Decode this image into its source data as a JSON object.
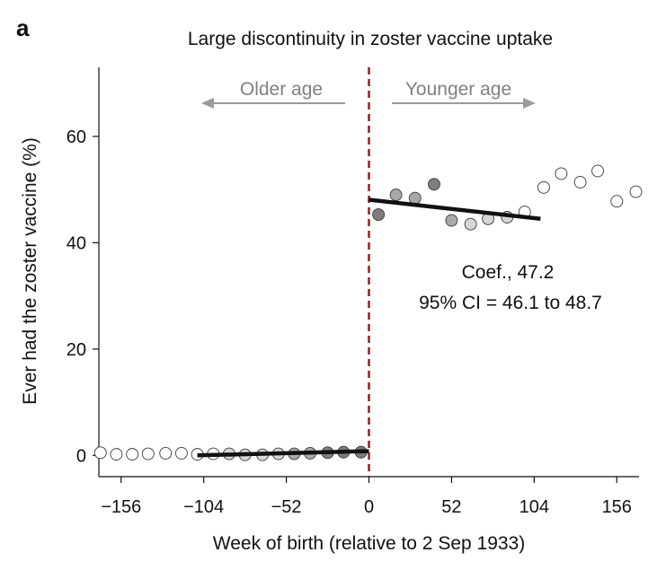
{
  "chart_data": {
    "type": "scatter",
    "panel_label": "a",
    "title": "Large discontinuity in zoster vaccine uptake",
    "xlabel": "Week of birth (relative to 2 Sep 1933)",
    "ylabel": "Ever had the zoster vaccine (%)",
    "xlim": [
      -170,
      170
    ],
    "ylim": [
      -4,
      73
    ],
    "xticks": [
      -156,
      -104,
      -52,
      0,
      52,
      104,
      156
    ],
    "xtick_labels": [
      "−156",
      "−104",
      "−52",
      "0",
      "52",
      "104",
      "156"
    ],
    "yticks": [
      0,
      20,
      40,
      60
    ],
    "ytick_labels": [
      "0",
      "20",
      "40",
      "60"
    ],
    "grid": false,
    "cutoff_x": 0,
    "arrows": {
      "left_label": "Older age",
      "right_label": "Younger age"
    },
    "annotation": {
      "line1": "Coef., 47.2",
      "line2": "95% CI = 46.1 to 48.7"
    },
    "points_older": [
      {
        "x": -169,
        "y": 0.5,
        "shade": "open"
      },
      {
        "x": -159,
        "y": 0.2,
        "shade": "open"
      },
      {
        "x": -149,
        "y": 0.2,
        "shade": "open"
      },
      {
        "x": -139,
        "y": 0.3,
        "shade": "open"
      },
      {
        "x": -128,
        "y": 0.4,
        "shade": "open"
      },
      {
        "x": -118,
        "y": 0.4,
        "shade": "open"
      },
      {
        "x": -108,
        "y": 0.2,
        "shade": "open"
      },
      {
        "x": -98,
        "y": 0.3,
        "shade": "open"
      },
      {
        "x": -88,
        "y": 0.3,
        "shade": "light"
      },
      {
        "x": -78,
        "y": 0.1,
        "shade": "light"
      },
      {
        "x": -67,
        "y": 0.1,
        "shade": "light"
      },
      {
        "x": -57,
        "y": 0.3,
        "shade": "light"
      },
      {
        "x": -47,
        "y": 0.3,
        "shade": "mid"
      },
      {
        "x": -37,
        "y": 0.4,
        "shade": "mid"
      },
      {
        "x": -26,
        "y": 0.5,
        "shade": "dark"
      },
      {
        "x": -16,
        "y": 0.6,
        "shade": "dark"
      },
      {
        "x": -5,
        "y": 0.6,
        "shade": "dark"
      }
    ],
    "points_younger": [
      {
        "x": 6,
        "y": 45.3,
        "shade": "dark"
      },
      {
        "x": 17,
        "y": 49.0,
        "shade": "mid"
      },
      {
        "x": 29,
        "y": 48.4,
        "shade": "mid"
      },
      {
        "x": 41,
        "y": 51.0,
        "shade": "dark"
      },
      {
        "x": 52,
        "y": 44.2,
        "shade": "mid"
      },
      {
        "x": 64,
        "y": 43.5,
        "shade": "light"
      },
      {
        "x": 75,
        "y": 44.5,
        "shade": "light"
      },
      {
        "x": 87,
        "y": 44.8,
        "shade": "light"
      },
      {
        "x": 98,
        "y": 45.8,
        "shade": "open"
      },
      {
        "x": 110,
        "y": 50.4,
        "shade": "open"
      },
      {
        "x": 121,
        "y": 53.0,
        "shade": "open"
      },
      {
        "x": 133,
        "y": 51.4,
        "shade": "open"
      },
      {
        "x": 144,
        "y": 53.5,
        "shade": "open"
      },
      {
        "x": 156,
        "y": 47.8,
        "shade": "open"
      },
      {
        "x": 168,
        "y": 49.6,
        "shade": "open"
      }
    ],
    "fit_older": {
      "x": [
        -108,
        0
      ],
      "y": [
        0.0,
        0.8
      ]
    },
    "fit_younger": {
      "x": [
        0,
        108
      ],
      "y": [
        48.1,
        44.5
      ]
    },
    "colors": {
      "open": "#ffffff",
      "light": "#d6d6d6",
      "mid": "#a9a9a9",
      "dark": "#7e7e7e",
      "point_edge": "#3a3a3a",
      "fit_line": "#111111",
      "cutoff_line": "#9b1b1b",
      "arrow": "#9a9a9a",
      "axis": "#111111"
    }
  }
}
